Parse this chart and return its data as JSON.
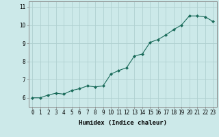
{
  "x": [
    0,
    1,
    2,
    3,
    4,
    5,
    6,
    7,
    8,
    9,
    10,
    11,
    12,
    13,
    14,
    15,
    16,
    17,
    18,
    19,
    20,
    21,
    22,
    23
  ],
  "y": [
    6.0,
    6.0,
    6.15,
    6.25,
    6.2,
    6.4,
    6.5,
    6.65,
    6.6,
    6.65,
    7.3,
    7.5,
    7.65,
    8.3,
    8.4,
    9.05,
    9.2,
    9.45,
    9.75,
    10.0,
    10.5,
    10.5,
    10.45,
    10.2
  ],
  "line_color": "#1a6b5a",
  "marker": "D",
  "marker_size": 2.0,
  "bg_color": "#cce9e9",
  "grid_color": "#b0d0d0",
  "xlabel": "Humidex (Indice chaleur)",
  "ylim": [
    5.5,
    11.3
  ],
  "xlim": [
    -0.5,
    23.5
  ],
  "yticks": [
    6,
    7,
    8,
    9,
    10,
    11
  ],
  "xticks": [
    0,
    1,
    2,
    3,
    4,
    5,
    6,
    7,
    8,
    9,
    10,
    11,
    12,
    13,
    14,
    15,
    16,
    17,
    18,
    19,
    20,
    21,
    22,
    23
  ],
  "xlabel_fontsize": 6.5,
  "tick_fontsize": 5.5,
  "spine_color": "#888888",
  "line_width": 0.8
}
